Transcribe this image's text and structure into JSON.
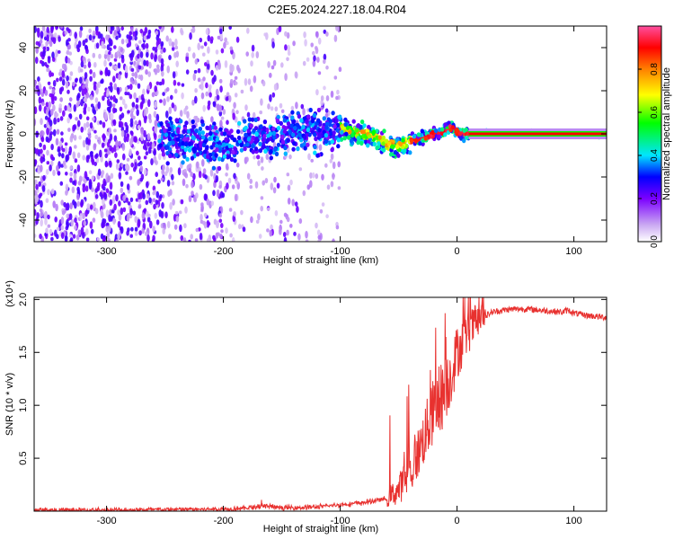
{
  "title": "C2E5.2024.227.18.04.R04",
  "chart_data": [
    {
      "type": "heatmap",
      "xlabel": "Height of straight line (km)",
      "ylabel": "Frequency (Hz)",
      "xlim": [
        -362,
        128
      ],
      "ylim": [
        -50,
        50
      ],
      "xticks": [
        -300,
        -200,
        -100,
        0,
        100
      ],
      "yticks": [
        -40,
        -20,
        0,
        20,
        40
      ],
      "colorbar": {
        "label": "Normalized spectral amplitude",
        "ticks": [
          "0.0",
          "0.2",
          "0.4",
          "0.6",
          "0.8"
        ],
        "range": [
          0,
          1
        ],
        "colormap": [
          "#ffffff",
          "#c9a6f2",
          "#7b00ff",
          "#0000ff",
          "#00e5ff",
          "#00ff00",
          "#ffff00",
          "#ff8000",
          "#ff0000",
          "#ff4fa0"
        ]
      },
      "ridge": {
        "x": [
          -250,
          -220,
          -200,
          -180,
          -160,
          -140,
          -120,
          -100,
          -90,
          -80,
          -70,
          -60,
          -50,
          -40,
          -30,
          -20,
          -10,
          -5,
          0,
          10,
          20,
          50,
          100,
          128
        ],
        "y": [
          -2,
          -4,
          -6,
          -1,
          -3,
          2,
          1,
          3,
          1,
          0,
          -1,
          -5,
          -6,
          -3,
          -2,
          0,
          1,
          3,
          1,
          0,
          0,
          0,
          0,
          0
        ]
      }
    },
    {
      "type": "line",
      "xlabel": "Height of straight line (km)",
      "ylabel": "SNR (10 * v/v)",
      "y_multiplier": "(x10⁴)",
      "xlim": [
        -362,
        128
      ],
      "ylim": [
        0,
        2.02
      ],
      "xticks": [
        -300,
        -200,
        -100,
        0,
        100
      ],
      "yticks": [
        "0.5",
        "1.0",
        "1.5",
        "2.0"
      ],
      "series": [
        {
          "color": "#e8312f",
          "x": [
            -362,
            -300,
            -250,
            -200,
            -180,
            -165,
            -150,
            -120,
            -100,
            -80,
            -60,
            -50,
            -45,
            -40,
            -35,
            -30,
            -25,
            -20,
            -15,
            -10,
            -5,
            0,
            10,
            20,
            30,
            40,
            50,
            60,
            70,
            80,
            90,
            95,
            100,
            110,
            128
          ],
          "y": [
            0.01,
            0.01,
            0.015,
            0.02,
            0.03,
            0.05,
            0.03,
            0.04,
            0.06,
            0.08,
            0.12,
            0.2,
            0.3,
            0.35,
            0.5,
            0.65,
            0.8,
            0.95,
            1.05,
            1.15,
            1.3,
            1.5,
            1.7,
            1.82,
            1.88,
            1.9,
            1.91,
            1.91,
            1.9,
            1.89,
            1.88,
            1.9,
            1.87,
            1.85,
            1.83
          ]
        }
      ]
    }
  ]
}
